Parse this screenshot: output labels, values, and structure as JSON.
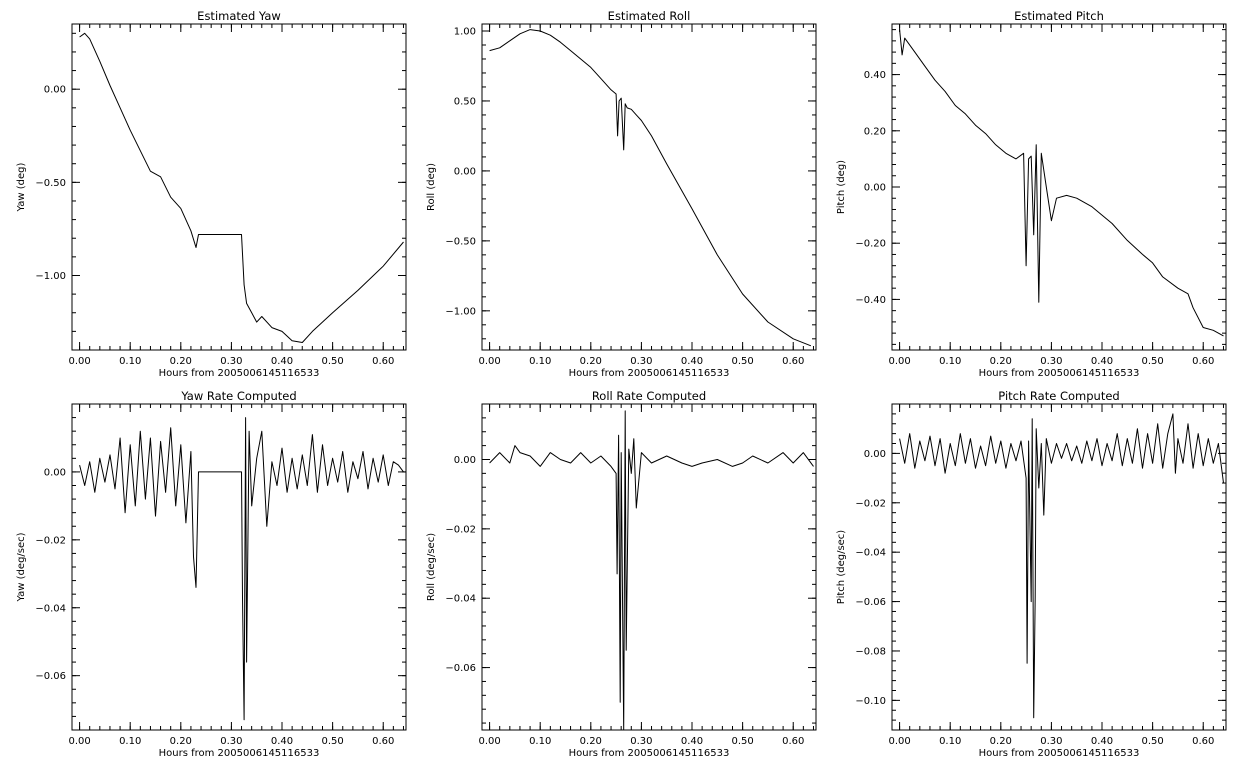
{
  "chart_data": [
    {
      "id": "yaw",
      "type": "line",
      "title": "Estimated Yaw",
      "xlabel": "Hours from 2005006145116533",
      "ylabel": "Yaw (deg)",
      "xlim": [
        -0.015,
        0.645
      ],
      "ylim": [
        -1.4,
        0.35
      ],
      "xticks": [
        0,
        0.1,
        0.2,
        0.3,
        0.4,
        0.5,
        0.6
      ],
      "yticks": [
        -1.0,
        -0.5,
        0.0
      ],
      "x_tick_labels": [
        "0.00",
        "0.10",
        "0.20",
        "0.30",
        "0.40",
        "0.50",
        "0.60"
      ],
      "y_tick_labels": [
        "−1.00",
        "−0.50",
        "0.00"
      ],
      "series": [
        {
          "x": [
            0.0,
            0.01,
            0.02,
            0.04,
            0.06,
            0.08,
            0.1,
            0.12,
            0.14,
            0.16,
            0.18,
            0.2,
            0.22,
            0.23,
            0.235,
            0.32,
            0.325,
            0.33,
            0.34,
            0.35,
            0.36,
            0.38,
            0.4,
            0.42,
            0.44,
            0.46,
            0.5,
            0.55,
            0.6,
            0.64
          ],
          "y": [
            0.28,
            0.3,
            0.27,
            0.15,
            0.02,
            -0.1,
            -0.22,
            -0.33,
            -0.44,
            -0.47,
            -0.58,
            -0.64,
            -0.76,
            -0.85,
            -0.78,
            -0.78,
            -1.05,
            -1.15,
            -1.2,
            -1.25,
            -1.22,
            -1.28,
            -1.3,
            -1.35,
            -1.36,
            -1.3,
            -1.2,
            -1.08,
            -0.95,
            -0.82
          ]
        }
      ]
    },
    {
      "id": "roll",
      "type": "line",
      "title": "Estimated Roll",
      "xlabel": "Hours from 2005006145116533",
      "ylabel": "Roll (deg)",
      "xlim": [
        -0.015,
        0.645
      ],
      "ylim": [
        -1.28,
        1.05
      ],
      "xticks": [
        0,
        0.1,
        0.2,
        0.3,
        0.4,
        0.5,
        0.6
      ],
      "yticks": [
        -1.0,
        -0.5,
        0.0,
        0.5,
        1.0
      ],
      "x_tick_labels": [
        "0.00",
        "0.10",
        "0.20",
        "0.30",
        "0.40",
        "0.50",
        "0.60"
      ],
      "y_tick_labels": [
        "−1.00",
        "−0.50",
        "0.00",
        "0.50",
        "1.00"
      ],
      "series": [
        {
          "x": [
            0.0,
            0.02,
            0.04,
            0.06,
            0.08,
            0.1,
            0.12,
            0.14,
            0.16,
            0.18,
            0.2,
            0.22,
            0.24,
            0.25,
            0.253,
            0.256,
            0.26,
            0.265,
            0.268,
            0.272,
            0.28,
            0.29,
            0.3,
            0.32,
            0.35,
            0.4,
            0.45,
            0.5,
            0.55,
            0.6,
            0.635
          ],
          "y": [
            0.86,
            0.88,
            0.93,
            0.98,
            1.01,
            1.0,
            0.97,
            0.92,
            0.86,
            0.8,
            0.74,
            0.66,
            0.58,
            0.55,
            0.25,
            0.5,
            0.52,
            0.15,
            0.48,
            0.45,
            0.44,
            0.4,
            0.36,
            0.25,
            0.05,
            -0.27,
            -0.6,
            -0.88,
            -1.08,
            -1.2,
            -1.25
          ]
        }
      ]
    },
    {
      "id": "pitch",
      "type": "line",
      "title": "Estimated Pitch",
      "xlabel": "Hours from 2005006145116533",
      "ylabel": "Pitch (deg)",
      "xlim": [
        -0.015,
        0.645
      ],
      "ylim": [
        -0.58,
        0.58
      ],
      "xticks": [
        0,
        0.1,
        0.2,
        0.3,
        0.4,
        0.5,
        0.6
      ],
      "yticks": [
        -0.4,
        -0.2,
        0.0,
        0.2,
        0.4
      ],
      "x_tick_labels": [
        "0.00",
        "0.10",
        "0.20",
        "0.30",
        "0.40",
        "0.50",
        "0.60"
      ],
      "y_tick_labels": [
        "−0.40",
        "−0.20",
        "0.00",
        "0.20",
        "0.40"
      ],
      "series": [
        {
          "x": [
            0.0,
            0.005,
            0.01,
            0.03,
            0.05,
            0.07,
            0.09,
            0.11,
            0.13,
            0.15,
            0.17,
            0.19,
            0.21,
            0.23,
            0.245,
            0.25,
            0.255,
            0.26,
            0.265,
            0.27,
            0.275,
            0.28,
            0.29,
            0.3,
            0.31,
            0.33,
            0.35,
            0.38,
            0.4,
            0.42,
            0.45,
            0.48,
            0.5,
            0.52,
            0.55,
            0.57,
            0.58,
            0.6,
            0.62,
            0.64
          ],
          "y": [
            0.56,
            0.47,
            0.53,
            0.48,
            0.43,
            0.38,
            0.34,
            0.29,
            0.26,
            0.22,
            0.19,
            0.15,
            0.12,
            0.1,
            0.12,
            -0.28,
            0.1,
            0.11,
            -0.17,
            0.15,
            -0.41,
            0.12,
            0.0,
            -0.12,
            -0.04,
            -0.03,
            -0.04,
            -0.07,
            -0.1,
            -0.13,
            -0.19,
            -0.24,
            -0.27,
            -0.32,
            -0.36,
            -0.38,
            -0.43,
            -0.5,
            -0.51,
            -0.53
          ]
        }
      ]
    },
    {
      "id": "yaw-rate",
      "type": "line",
      "title": "Yaw Rate Computed",
      "xlabel": "Hours from 2005006145116533",
      "ylabel": "Yaw (deg/sec)",
      "xlim": [
        -0.015,
        0.645
      ],
      "ylim": [
        -0.076,
        0.02
      ],
      "xticks": [
        0,
        0.1,
        0.2,
        0.3,
        0.4,
        0.5,
        0.6
      ],
      "yticks": [
        -0.06,
        -0.04,
        -0.02,
        0.0
      ],
      "x_tick_labels": [
        "0.00",
        "0.10",
        "0.20",
        "0.30",
        "0.40",
        "0.50",
        "0.60"
      ],
      "y_tick_labels": [
        "−0.06",
        "−0.04",
        "−0.02",
        "0.00"
      ],
      "series": [
        {
          "x": [
            0.0,
            0.01,
            0.02,
            0.03,
            0.04,
            0.05,
            0.06,
            0.07,
            0.08,
            0.09,
            0.1,
            0.11,
            0.12,
            0.13,
            0.14,
            0.15,
            0.16,
            0.17,
            0.18,
            0.19,
            0.2,
            0.21,
            0.22,
            0.225,
            0.23,
            0.235,
            0.24,
            0.32,
            0.322,
            0.325,
            0.328,
            0.33,
            0.335,
            0.34,
            0.35,
            0.36,
            0.37,
            0.38,
            0.39,
            0.4,
            0.41,
            0.42,
            0.43,
            0.44,
            0.45,
            0.46,
            0.47,
            0.48,
            0.49,
            0.5,
            0.51,
            0.52,
            0.53,
            0.54,
            0.55,
            0.56,
            0.57,
            0.58,
            0.59,
            0.6,
            0.61,
            0.62,
            0.63,
            0.64
          ],
          "y": [
            0.002,
            -0.004,
            0.003,
            -0.006,
            0.004,
            -0.003,
            0.005,
            -0.005,
            0.01,
            -0.012,
            0.008,
            -0.01,
            0.012,
            -0.008,
            0.01,
            -0.013,
            0.009,
            -0.006,
            0.013,
            -0.01,
            0.008,
            -0.015,
            0.006,
            -0.025,
            -0.034,
            0.0,
            0.0,
            0.0,
            -0.037,
            -0.073,
            0.016,
            -0.056,
            0.012,
            -0.01,
            0.004,
            0.012,
            -0.016,
            0.003,
            -0.004,
            0.007,
            -0.006,
            0.004,
            -0.005,
            0.005,
            -0.004,
            0.011,
            -0.006,
            0.008,
            -0.004,
            0.004,
            -0.003,
            0.006,
            -0.006,
            0.003,
            -0.002,
            0.006,
            -0.005,
            0.004,
            -0.003,
            0.005,
            -0.004,
            0.003,
            0.002,
            0.0
          ]
        }
      ]
    },
    {
      "id": "roll-rate",
      "type": "line",
      "title": "Roll Rate Computed",
      "xlabel": "Hours from 2005006145116533",
      "ylabel": "Roll (deg/sec)",
      "xlim": [
        -0.015,
        0.645
      ],
      "ylim": [
        -0.078,
        0.016
      ],
      "xticks": [
        0,
        0.1,
        0.2,
        0.3,
        0.4,
        0.5,
        0.6
      ],
      "yticks": [
        -0.06,
        -0.04,
        -0.02,
        0.0
      ],
      "x_tick_labels": [
        "0.00",
        "0.10",
        "0.20",
        "0.30",
        "0.40",
        "0.50",
        "0.60"
      ],
      "y_tick_labels": [
        "−0.06",
        "−0.04",
        "−0.02",
        "0.00"
      ],
      "series": [
        {
          "x": [
            0.0,
            0.02,
            0.04,
            0.05,
            0.06,
            0.08,
            0.1,
            0.12,
            0.14,
            0.16,
            0.18,
            0.2,
            0.22,
            0.24,
            0.25,
            0.252,
            0.255,
            0.258,
            0.26,
            0.265,
            0.268,
            0.27,
            0.275,
            0.28,
            0.285,
            0.29,
            0.3,
            0.32,
            0.35,
            0.38,
            0.4,
            0.42,
            0.45,
            0.48,
            0.5,
            0.52,
            0.55,
            0.58,
            0.6,
            0.62,
            0.64
          ],
          "y": [
            -0.001,
            0.002,
            -0.001,
            0.004,
            0.002,
            0.001,
            -0.002,
            0.002,
            0.0,
            -0.001,
            0.002,
            -0.001,
            0.001,
            -0.002,
            -0.004,
            -0.033,
            0.007,
            -0.07,
            0.002,
            -0.078,
            0.014,
            -0.055,
            0.003,
            -0.004,
            0.006,
            -0.014,
            0.002,
            -0.001,
            0.001,
            -0.001,
            -0.002,
            -0.001,
            0.0,
            -0.002,
            -0.001,
            0.001,
            -0.001,
            0.002,
            -0.001,
            0.002,
            -0.002
          ]
        }
      ]
    },
    {
      "id": "pitch-rate",
      "type": "line",
      "title": "Pitch Rate Computed",
      "xlabel": "Hours from 2005006145116533",
      "ylabel": "Pitch (deg/sec)",
      "xlim": [
        -0.015,
        0.645
      ],
      "ylim": [
        -0.112,
        0.02
      ],
      "xticks": [
        0,
        0.1,
        0.2,
        0.3,
        0.4,
        0.5,
        0.6
      ],
      "yticks": [
        -0.1,
        -0.08,
        -0.06,
        -0.04,
        -0.02,
        0.0
      ],
      "x_tick_labels": [
        "0.00",
        "0.10",
        "0.20",
        "0.30",
        "0.40",
        "0.50",
        "0.60"
      ],
      "y_tick_labels": [
        "−0.10",
        "−0.08",
        "−0.06",
        "−0.04",
        "−0.02",
        "0.00"
      ],
      "series": [
        {
          "x": [
            0.0,
            0.01,
            0.02,
            0.03,
            0.04,
            0.05,
            0.06,
            0.07,
            0.08,
            0.09,
            0.1,
            0.11,
            0.12,
            0.13,
            0.14,
            0.15,
            0.16,
            0.17,
            0.18,
            0.19,
            0.2,
            0.21,
            0.22,
            0.23,
            0.24,
            0.25,
            0.252,
            0.255,
            0.26,
            0.262,
            0.265,
            0.268,
            0.27,
            0.275,
            0.28,
            0.285,
            0.29,
            0.3,
            0.31,
            0.32,
            0.33,
            0.34,
            0.35,
            0.36,
            0.37,
            0.38,
            0.39,
            0.4,
            0.41,
            0.42,
            0.43,
            0.44,
            0.45,
            0.46,
            0.47,
            0.48,
            0.49,
            0.5,
            0.51,
            0.52,
            0.53,
            0.54,
            0.545,
            0.55,
            0.56,
            0.57,
            0.58,
            0.59,
            0.6,
            0.61,
            0.62,
            0.63,
            0.64
          ],
          "y": [
            0.006,
            -0.004,
            0.008,
            -0.006,
            0.005,
            -0.003,
            0.007,
            -0.005,
            0.006,
            -0.008,
            0.004,
            -0.005,
            0.008,
            -0.004,
            0.006,
            -0.006,
            0.003,
            -0.005,
            0.007,
            -0.004,
            0.005,
            -0.006,
            0.004,
            -0.003,
            0.005,
            -0.01,
            -0.085,
            0.005,
            -0.06,
            0.014,
            -0.107,
            -0.058,
            0.01,
            -0.014,
            0.004,
            -0.025,
            0.006,
            -0.004,
            0.004,
            -0.002,
            0.004,
            -0.003,
            0.003,
            -0.004,
            0.005,
            -0.003,
            0.006,
            -0.005,
            0.004,
            -0.003,
            0.008,
            -0.005,
            0.006,
            -0.004,
            0.01,
            -0.006,
            0.008,
            -0.004,
            0.012,
            -0.006,
            0.008,
            0.016,
            -0.008,
            0.006,
            -0.004,
            0.012,
            -0.006,
            0.008,
            -0.005,
            0.006,
            -0.004,
            0.004,
            -0.012
          ]
        }
      ]
    }
  ]
}
